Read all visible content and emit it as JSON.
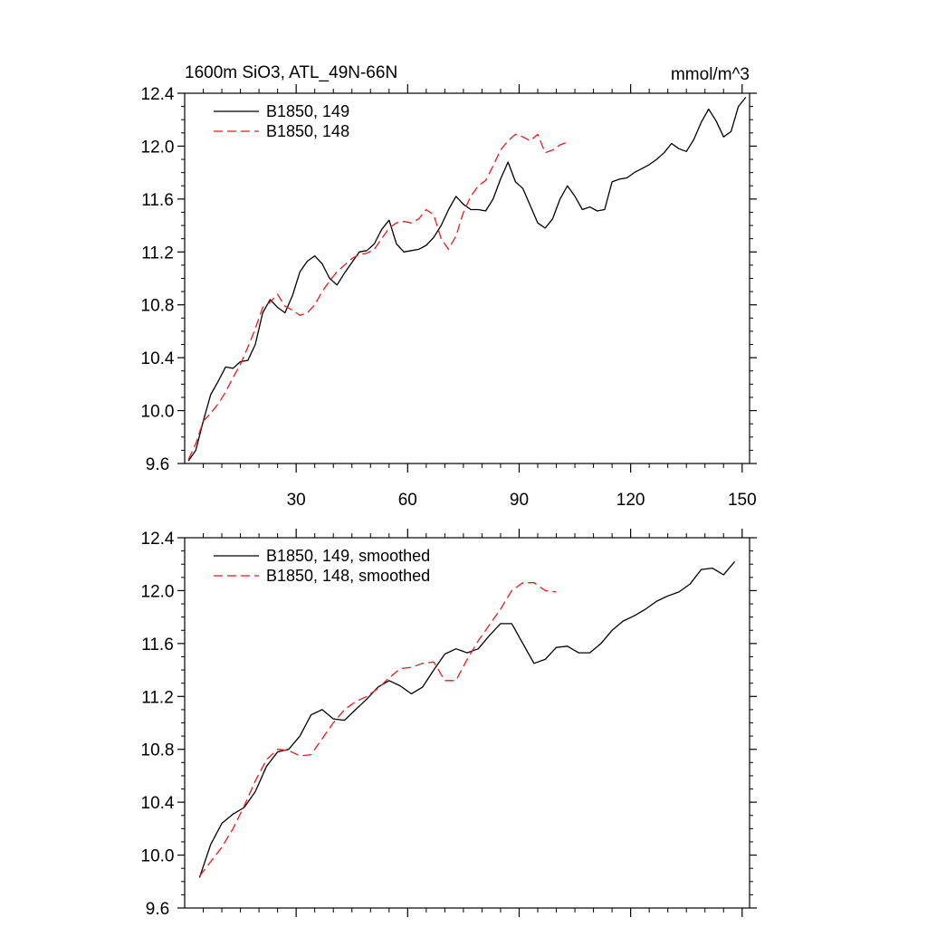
{
  "figure": {
    "title_left": "1600m SiO3, ATL_49N-66N",
    "title_right": "mmol/m^3"
  },
  "colors": {
    "series_149": "#000000",
    "series_148": "#e8191a",
    "axes": "#000000"
  },
  "chart_data": [
    {
      "type": "line",
      "title": "1600m SiO3, ATL_49N-66N",
      "units": "mmol/m^3",
      "xlim": [
        0,
        152
      ],
      "ylim": [
        9.6,
        12.4
      ],
      "x_ticks": [
        30,
        60,
        90,
        120,
        150
      ],
      "x_tick_labels": [
        "30",
        "60",
        "90",
        "120",
        "150"
      ],
      "y_ticks": [
        9.6,
        10.0,
        10.4,
        10.8,
        11.2,
        11.6,
        12.0,
        12.4
      ],
      "y_tick_labels": [
        "9.6",
        "10.0",
        "10.4",
        "10.8",
        "11.2",
        "11.6",
        "12.0",
        "12.4"
      ],
      "legend_position": "top-left",
      "series": [
        {
          "name": "B1850, 149",
          "style": "solid",
          "x": [
            1,
            3,
            5,
            7,
            9,
            11,
            13,
            15,
            17,
            19,
            21,
            23,
            25,
            27,
            29,
            31,
            33,
            35,
            37,
            39,
            41,
            43,
            45,
            47,
            49,
            51,
            53,
            55,
            57,
            59,
            61,
            63,
            65,
            67,
            69,
            71,
            73,
            75,
            77,
            79,
            81,
            83,
            85,
            87,
            89,
            91,
            93,
            95,
            97,
            99,
            101,
            103,
            105,
            107,
            109,
            111,
            113,
            115,
            117,
            119,
            121,
            123,
            125,
            127,
            129,
            131,
            133,
            135,
            137,
            139,
            141,
            143,
            145,
            147,
            149,
            151
          ],
          "values": [
            9.62,
            9.7,
            9.92,
            10.12,
            10.22,
            10.33,
            10.32,
            10.37,
            10.38,
            10.5,
            10.74,
            10.84,
            10.78,
            10.74,
            10.87,
            11.05,
            11.13,
            11.17,
            11.11,
            11.0,
            10.95,
            11.04,
            11.12,
            11.2,
            11.21,
            11.26,
            11.37,
            11.44,
            11.26,
            11.2,
            11.21,
            11.22,
            11.25,
            11.31,
            11.4,
            11.52,
            11.62,
            11.56,
            11.52,
            11.52,
            11.51,
            11.6,
            11.75,
            11.88,
            11.73,
            11.68,
            11.55,
            11.42,
            11.38,
            11.45,
            11.6,
            11.7,
            11.62,
            11.52,
            11.54,
            11.51,
            11.52,
            11.73,
            11.75,
            11.76,
            11.8,
            11.83,
            11.86,
            11.9,
            11.95,
            12.02,
            11.98,
            11.96,
            12.05,
            12.18,
            12.28,
            12.19,
            12.07,
            12.11,
            12.3,
            12.37
          ]
        },
        {
          "name": "B1850, 148",
          "style": "dashed",
          "x": [
            1,
            3,
            5,
            7,
            9,
            11,
            13,
            15,
            17,
            19,
            21,
            23,
            25,
            27,
            29,
            31,
            33,
            35,
            37,
            39,
            41,
            43,
            45,
            47,
            49,
            51,
            53,
            55,
            57,
            59,
            61,
            63,
            65,
            67,
            69,
            71,
            73,
            75,
            77,
            79,
            81,
            83,
            85,
            87,
            89,
            91,
            93,
            95,
            97,
            99,
            101,
            103
          ],
          "values": [
            9.63,
            9.75,
            9.92,
            9.98,
            10.05,
            10.14,
            10.25,
            10.35,
            10.48,
            10.62,
            10.78,
            10.82,
            10.88,
            10.79,
            10.76,
            10.72,
            10.74,
            10.8,
            10.9,
            10.98,
            11.05,
            11.1,
            11.15,
            11.18,
            11.19,
            11.22,
            11.3,
            11.38,
            11.42,
            11.43,
            11.42,
            11.45,
            11.52,
            11.48,
            11.3,
            11.22,
            11.32,
            11.5,
            11.62,
            11.7,
            11.74,
            11.85,
            11.97,
            12.04,
            12.09,
            12.07,
            12.04,
            12.09,
            11.95,
            11.97,
            12.01,
            12.03
          ]
        }
      ]
    },
    {
      "type": "line",
      "xlim": [
        0,
        152
      ],
      "ylim": [
        9.6,
        12.4
      ],
      "x_ticks": [
        30,
        60,
        90,
        120,
        150
      ],
      "y_ticks": [
        9.6,
        10.0,
        10.4,
        10.8,
        11.2,
        11.6,
        12.0,
        12.4
      ],
      "y_tick_labels": [
        "9.6",
        "10.0",
        "10.4",
        "10.8",
        "11.2",
        "11.6",
        "12.0",
        "12.4"
      ],
      "legend_position": "top-left",
      "series": [
        {
          "name": "B1850, 149, smoothed",
          "style": "solid",
          "x": [
            4,
            7,
            10,
            13,
            16,
            19,
            22,
            25,
            28,
            31,
            34,
            37,
            40,
            43,
            46,
            49,
            52,
            55,
            58,
            61,
            64,
            67,
            70,
            73,
            76,
            79,
            82,
            85,
            88,
            91,
            94,
            97,
            100,
            103,
            106,
            109,
            112,
            115,
            118,
            121,
            124,
            127,
            130,
            133,
            136,
            139,
            142,
            145,
            148
          ],
          "values": [
            9.83,
            10.08,
            10.24,
            10.31,
            10.36,
            10.48,
            10.67,
            10.78,
            10.8,
            10.9,
            11.06,
            11.1,
            11.03,
            11.02,
            11.1,
            11.18,
            11.27,
            11.32,
            11.28,
            11.22,
            11.27,
            11.4,
            11.52,
            11.56,
            11.53,
            11.56,
            11.66,
            11.75,
            11.75,
            11.6,
            11.45,
            11.48,
            11.57,
            11.58,
            11.53,
            11.53,
            11.6,
            11.7,
            11.77,
            11.81,
            11.86,
            11.92,
            11.96,
            11.99,
            12.05,
            12.16,
            12.17,
            12.12,
            12.22
          ]
        },
        {
          "name": "B1850, 148, smoothed",
          "style": "dashed",
          "x": [
            4,
            7,
            10,
            13,
            16,
            19,
            22,
            25,
            28,
            31,
            34,
            37,
            40,
            43,
            46,
            49,
            52,
            55,
            58,
            61,
            64,
            67,
            70,
            73,
            76,
            79,
            82,
            85,
            88,
            91,
            94,
            97,
            100
          ],
          "values": [
            9.84,
            9.95,
            10.06,
            10.2,
            10.37,
            10.56,
            10.72,
            10.8,
            10.79,
            10.75,
            10.76,
            10.88,
            11.0,
            11.1,
            11.16,
            11.2,
            11.26,
            11.34,
            11.41,
            11.42,
            11.45,
            11.46,
            11.32,
            11.32,
            11.48,
            11.62,
            11.74,
            11.86,
            12.0,
            12.06,
            12.06,
            12.0,
            11.99
          ]
        }
      ]
    }
  ]
}
